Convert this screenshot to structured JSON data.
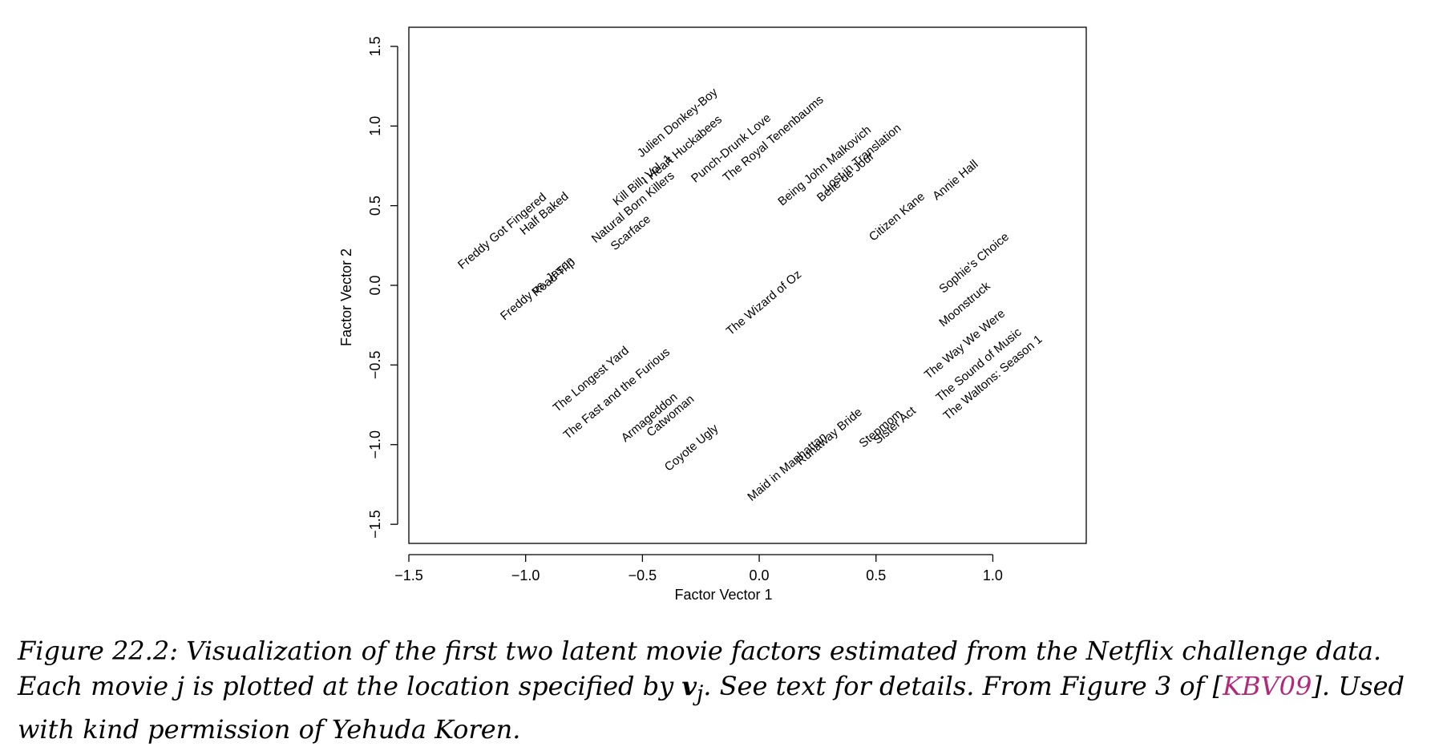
{
  "chart_data": {
    "type": "scatter",
    "xlabel": "Factor Vector 1",
    "ylabel": "Factor Vector 2",
    "xlim": [
      -1.5,
      1.4
    ],
    "ylim": [
      -1.62,
      1.62
    ],
    "xticks": [
      {
        "value": -1.5,
        "label": "−1.5"
      },
      {
        "value": -1.0,
        "label": "−1.0"
      },
      {
        "value": -0.5,
        "label": "−0.5"
      },
      {
        "value": 0.0,
        "label": "0.0"
      },
      {
        "value": 0.5,
        "label": "0.5"
      },
      {
        "value": 1.0,
        "label": "1.0"
      }
    ],
    "yticks": [
      {
        "value": -1.5,
        "label": "−1.5"
      },
      {
        "value": -1.0,
        "label": "−1.0"
      },
      {
        "value": -0.5,
        "label": "−0.5"
      },
      {
        "value": 0.0,
        "label": "0.0"
      },
      {
        "value": 0.5,
        "label": "0.5"
      },
      {
        "value": 1.0,
        "label": "1.0"
      },
      {
        "value": 1.5,
        "label": "1.5"
      }
    ],
    "grid": false,
    "label_angle_deg": 40,
    "points": [
      {
        "label": "Freddy Got Fingered",
        "x": -1.1,
        "y": 0.34
      },
      {
        "label": "Half Baked",
        "x": -0.92,
        "y": 0.45
      },
      {
        "label": "Freddy vs. Jason",
        "x": -0.95,
        "y": -0.02
      },
      {
        "label": "Road Trip",
        "x": -0.88,
        "y": 0.05
      },
      {
        "label": "Kill Bill: Vol. 1",
        "x": -0.5,
        "y": 0.66
      },
      {
        "label": "Natural Born Killers",
        "x": -0.54,
        "y": 0.49
      },
      {
        "label": "Scarface",
        "x": -0.55,
        "y": 0.33
      },
      {
        "label": "Julien Donkey-Boy",
        "x": -0.35,
        "y": 1.02
      },
      {
        "label": "I Heart Huckabees",
        "x": -0.33,
        "y": 0.85
      },
      {
        "label": "Punch-Drunk Love",
        "x": -0.12,
        "y": 0.86
      },
      {
        "label": "The Royal Tenenbaums",
        "x": 0.06,
        "y": 0.92
      },
      {
        "label": "Being John Malkovich",
        "x": 0.28,
        "y": 0.75
      },
      {
        "label": "Lost in Translation",
        "x": 0.44,
        "y": 0.8
      },
      {
        "label": "Belle de Jour",
        "x": 0.37,
        "y": 0.68
      },
      {
        "label": "Citizen Kane",
        "x": 0.59,
        "y": 0.43
      },
      {
        "label": "Annie Hall",
        "x": 0.84,
        "y": 0.66
      },
      {
        "label": "The Wizard of Oz",
        "x": 0.02,
        "y": -0.11
      },
      {
        "label": "Sophie's Choice",
        "x": 0.92,
        "y": 0.14
      },
      {
        "label": "Moonstruck",
        "x": 0.88,
        "y": -0.12
      },
      {
        "label": "The Way We Were",
        "x": 0.88,
        "y": -0.37
      },
      {
        "label": "The Sound of Music",
        "x": 0.94,
        "y": -0.5
      },
      {
        "label": "The Waltons: Season 1",
        "x": 1.0,
        "y": -0.58
      },
      {
        "label": "The Longest Yard",
        "x": -0.72,
        "y": -0.59
      },
      {
        "label": "The Fast and the Furious",
        "x": -0.61,
        "y": -0.68
      },
      {
        "label": "Armageddon",
        "x": -0.47,
        "y": -0.83
      },
      {
        "label": "Catwoman",
        "x": -0.38,
        "y": -0.82
      },
      {
        "label": "Coyote Ugly",
        "x": -0.29,
        "y": -1.02
      },
      {
        "label": "Maid in Manhattan",
        "x": 0.12,
        "y": -1.14
      },
      {
        "label": "Runaway Bride",
        "x": 0.3,
        "y": -0.95
      },
      {
        "label": "Stepmom",
        "x": 0.52,
        "y": -0.9
      },
      {
        "label": "Sister Act",
        "x": 0.58,
        "y": -0.88
      }
    ]
  },
  "caption": {
    "prefix": "Figure 22.2: Visualization of the first two latent movie factors estimated from the Netflix challenge data. Each movie j is plotted at the location specified by ",
    "math": "v",
    "subscript": "j",
    "middle": ". See text for details. From Figure 3 of [",
    "ref": "KBV09",
    "suffix": "]. Used with kind permission of Yehuda Koren."
  }
}
